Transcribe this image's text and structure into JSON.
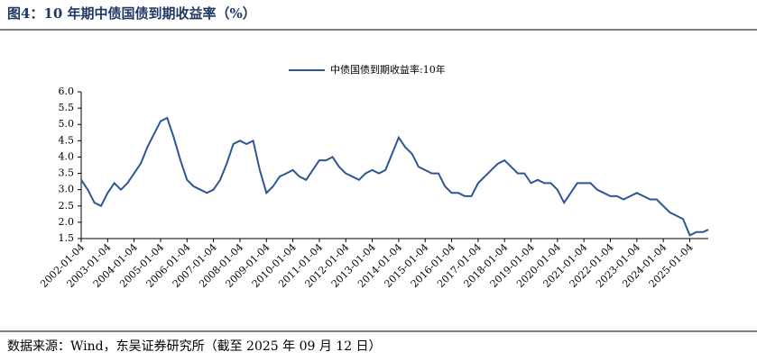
{
  "chart_data": {
    "type": "line",
    "title": "图4：10 年期中债国债到期收益率（%）",
    "source": "数据来源：Wind，东吴证券研究所（截至 2025 年 09 月 12 日）",
    "x": [
      2002.0,
      2002.25,
      2002.5,
      2002.75,
      2003.0,
      2003.25,
      2003.5,
      2003.75,
      2004.0,
      2004.25,
      2004.5,
      2004.75,
      2005.0,
      2005.25,
      2005.5,
      2005.75,
      2006.0,
      2006.25,
      2006.5,
      2006.75,
      2007.0,
      2007.25,
      2007.5,
      2007.75,
      2008.0,
      2008.25,
      2008.5,
      2008.75,
      2009.0,
      2009.25,
      2009.5,
      2009.75,
      2010.0,
      2010.25,
      2010.5,
      2010.75,
      2011.0,
      2011.25,
      2011.5,
      2011.75,
      2012.0,
      2012.25,
      2012.5,
      2012.75,
      2013.0,
      2013.25,
      2013.5,
      2013.75,
      2014.0,
      2014.25,
      2014.5,
      2014.75,
      2015.0,
      2015.25,
      2015.5,
      2015.75,
      2016.0,
      2016.25,
      2016.5,
      2016.75,
      2017.0,
      2017.25,
      2017.5,
      2017.75,
      2018.0,
      2018.25,
      2018.5,
      2018.75,
      2019.0,
      2019.25,
      2019.5,
      2019.75,
      2020.0,
      2020.25,
      2020.5,
      2020.75,
      2021.0,
      2021.25,
      2021.5,
      2021.75,
      2022.0,
      2022.25,
      2022.5,
      2022.75,
      2023.0,
      2023.25,
      2023.5,
      2023.75,
      2024.0,
      2024.25,
      2024.5,
      2024.75,
      2025.0,
      2025.25,
      2025.5,
      2025.7
    ],
    "series": [
      {
        "name": "中债国债到期收益率:10年",
        "color": "#2f5597",
        "values": [
          3.3,
          3.0,
          2.6,
          2.5,
          2.9,
          3.2,
          3.0,
          3.2,
          3.5,
          3.8,
          4.3,
          4.7,
          5.1,
          5.2,
          4.6,
          3.9,
          3.3,
          3.1,
          3.0,
          2.9,
          3.0,
          3.3,
          3.8,
          4.4,
          4.5,
          4.4,
          4.5,
          3.6,
          2.9,
          3.1,
          3.4,
          3.5,
          3.6,
          3.4,
          3.3,
          3.6,
          3.9,
          3.9,
          4.0,
          3.7,
          3.5,
          3.4,
          3.3,
          3.5,
          3.6,
          3.5,
          3.6,
          4.1,
          4.6,
          4.3,
          4.1,
          3.7,
          3.6,
          3.5,
          3.5,
          3.1,
          2.9,
          2.9,
          2.8,
          2.8,
          3.2,
          3.4,
          3.6,
          3.8,
          3.9,
          3.7,
          3.5,
          3.5,
          3.2,
          3.3,
          3.2,
          3.2,
          3.0,
          2.6,
          2.9,
          3.2,
          3.2,
          3.2,
          3.0,
          2.9,
          2.8,
          2.8,
          2.7,
          2.8,
          2.9,
          2.8,
          2.7,
          2.7,
          2.5,
          2.3,
          2.2,
          2.1,
          1.6,
          1.7,
          1.7,
          1.77
        ]
      }
    ],
    "xlim": [
      2002.0,
      2025.7
    ],
    "xticks": [
      {
        "value": 2002,
        "label": "2002-01-04"
      },
      {
        "value": 2003,
        "label": "2003-01-04"
      },
      {
        "value": 2004,
        "label": "2004-01-04"
      },
      {
        "value": 2005,
        "label": "2005-01-04"
      },
      {
        "value": 2006,
        "label": "2006-01-04"
      },
      {
        "value": 2007,
        "label": "2007-01-04"
      },
      {
        "value": 2008,
        "label": "2008-01-04"
      },
      {
        "value": 2009,
        "label": "2009-01-04"
      },
      {
        "value": 2010,
        "label": "2010-01-04"
      },
      {
        "value": 2011,
        "label": "2011-01-04"
      },
      {
        "value": 2012,
        "label": "2012-01-04"
      },
      {
        "value": 2013,
        "label": "2013-01-04"
      },
      {
        "value": 2014,
        "label": "2014-01-04"
      },
      {
        "value": 2015,
        "label": "2015-01-04"
      },
      {
        "value": 2016,
        "label": "2016-01-04"
      },
      {
        "value": 2017,
        "label": "2017-01-04"
      },
      {
        "value": 2018,
        "label": "2018-01-04"
      },
      {
        "value": 2019,
        "label": "2019-01-04"
      },
      {
        "value": 2020,
        "label": "2020-01-04"
      },
      {
        "value": 2021,
        "label": "2021-01-04"
      },
      {
        "value": 2022,
        "label": "2022-01-04"
      },
      {
        "value": 2023,
        "label": "2023-01-04"
      },
      {
        "value": 2024,
        "label": "2024-01-04"
      },
      {
        "value": 2025,
        "label": "2025-01-04"
      }
    ],
    "ylim": [
      1.5,
      6.0
    ],
    "yticks": [
      1.5,
      {
        "value": 2,
        "label": "2.0"
      },
      2.5,
      {
        "value": 3,
        "label": "3.0"
      },
      3.5,
      {
        "value": 4,
        "label": "4.0"
      },
      4.5,
      {
        "value": 5,
        "label": "5.0"
      },
      5.5,
      {
        "value": 6,
        "label": "6.0"
      }
    ],
    "legend": "top"
  }
}
